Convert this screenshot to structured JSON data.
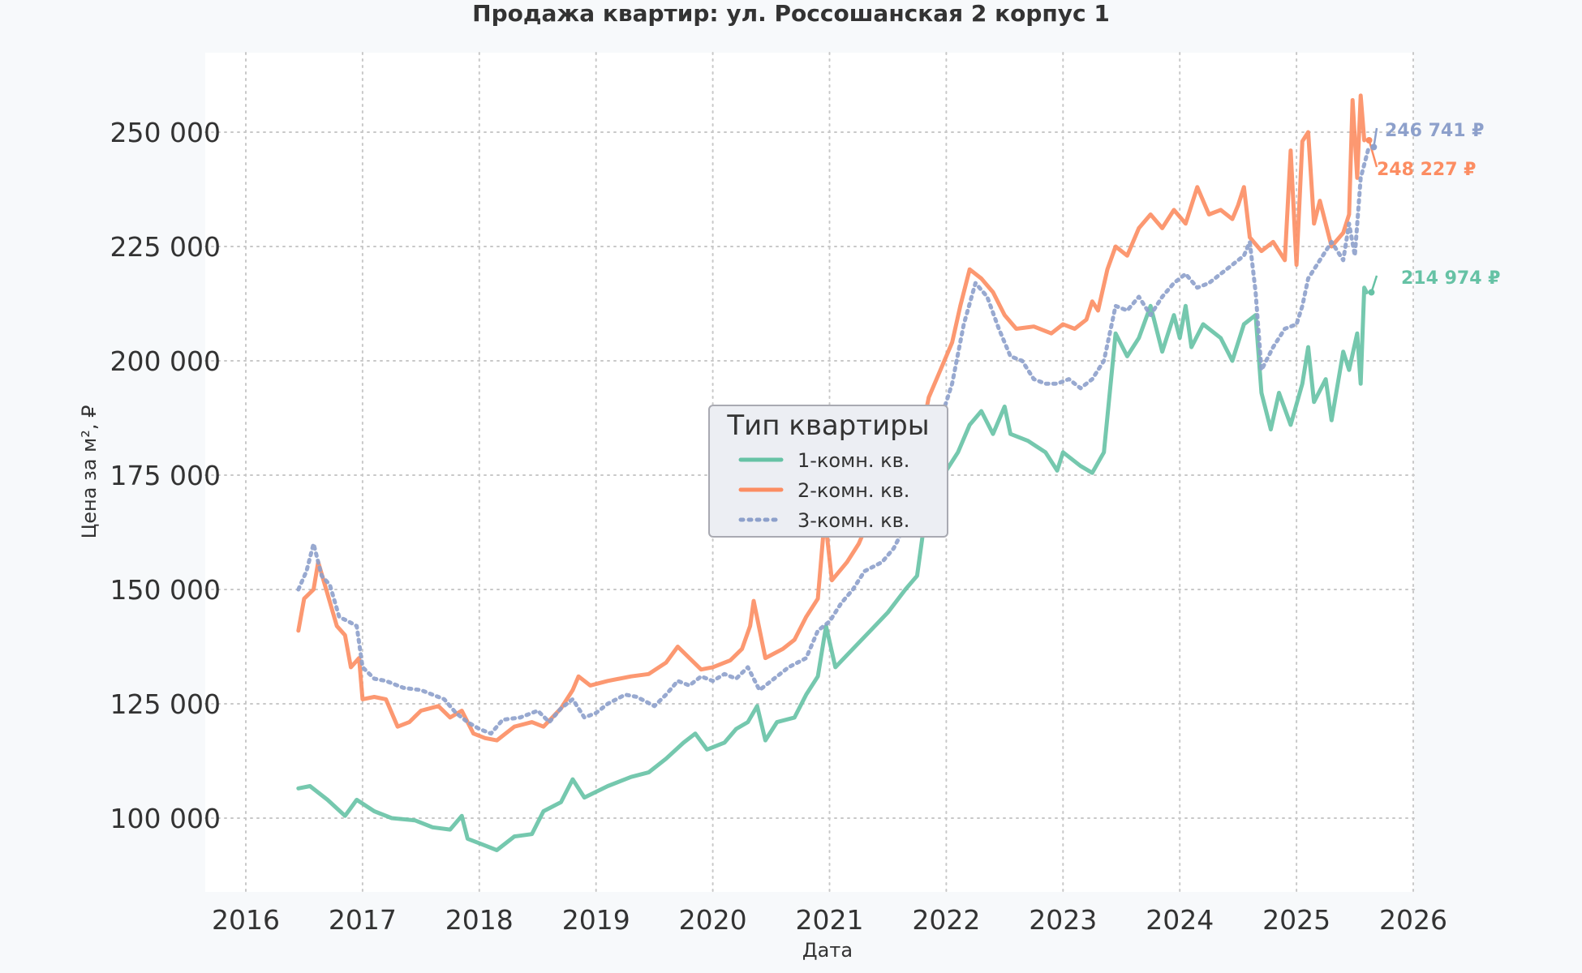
{
  "chart_data": {
    "type": "line",
    "title": "Продажа квартир: ул. Россошанская 2 корпус 1",
    "xlabel": "Дата",
    "ylabel": "Цена за м², ₽",
    "xlim": [
      2016,
      2026
    ],
    "ylim": [
      85000,
      267000
    ],
    "x_ticks": [
      "2016",
      "2017",
      "2018",
      "2019",
      "2020",
      "2021",
      "2022",
      "2023",
      "2024",
      "2025",
      "2026"
    ],
    "y_ticks": [
      {
        "value": 100000,
        "label": "100 000"
      },
      {
        "value": 125000,
        "label": "125 000"
      },
      {
        "value": 150000,
        "label": "150 000"
      },
      {
        "value": 175000,
        "label": "175 000"
      },
      {
        "value": 200000,
        "label": "200 000"
      },
      {
        "value": 225000,
        "label": "225 000"
      },
      {
        "value": 250000,
        "label": "250 000"
      }
    ],
    "grid": true,
    "legend": {
      "title": "Тип квартиры",
      "placement": "center"
    },
    "series": [
      {
        "name": "1-комн. кв.",
        "color": "#66c2a5",
        "dash": "solid",
        "end_label": "214 974 ₽",
        "points": [
          [
            2016.45,
            106500
          ],
          [
            2016.55,
            107000
          ],
          [
            2016.7,
            104000
          ],
          [
            2016.85,
            100500
          ],
          [
            2016.95,
            104000
          ],
          [
            2017.1,
            101500
          ],
          [
            2017.25,
            100000
          ],
          [
            2017.45,
            99500
          ],
          [
            2017.6,
            98000
          ],
          [
            2017.75,
            97500
          ],
          [
            2017.85,
            100500
          ],
          [
            2017.9,
            95500
          ],
          [
            2018.05,
            94000
          ],
          [
            2018.15,
            93000
          ],
          [
            2018.3,
            96000
          ],
          [
            2018.45,
            96500
          ],
          [
            2018.55,
            101500
          ],
          [
            2018.7,
            103500
          ],
          [
            2018.8,
            108500
          ],
          [
            2018.9,
            104500
          ],
          [
            2019.1,
            107000
          ],
          [
            2019.3,
            109000
          ],
          [
            2019.45,
            110000
          ],
          [
            2019.6,
            113000
          ],
          [
            2019.75,
            116500
          ],
          [
            2019.85,
            118500
          ],
          [
            2019.95,
            115000
          ],
          [
            2020.1,
            116500
          ],
          [
            2020.2,
            119500
          ],
          [
            2020.3,
            121000
          ],
          [
            2020.38,
            124500
          ],
          [
            2020.45,
            117000
          ],
          [
            2020.55,
            121000
          ],
          [
            2020.7,
            122000
          ],
          [
            2020.8,
            127000
          ],
          [
            2020.9,
            131000
          ],
          [
            2020.97,
            142000
          ],
          [
            2021.05,
            133000
          ],
          [
            2021.2,
            137000
          ],
          [
            2021.35,
            141000
          ],
          [
            2021.5,
            145000
          ],
          [
            2021.65,
            150000
          ],
          [
            2021.75,
            153000
          ],
          [
            2021.82,
            166000
          ],
          [
            2021.9,
            172000
          ],
          [
            2022.0,
            176000
          ],
          [
            2022.1,
            180000
          ],
          [
            2022.2,
            186000
          ],
          [
            2022.3,
            189000
          ],
          [
            2022.4,
            184000
          ],
          [
            2022.5,
            190000
          ],
          [
            2022.55,
            184000
          ],
          [
            2022.7,
            182500
          ],
          [
            2022.85,
            180000
          ],
          [
            2022.95,
            176000
          ],
          [
            2023.0,
            180000
          ],
          [
            2023.15,
            177000
          ],
          [
            2023.25,
            175500
          ],
          [
            2023.35,
            180000
          ],
          [
            2023.4,
            193000
          ],
          [
            2023.45,
            206000
          ],
          [
            2023.55,
            201000
          ],
          [
            2023.65,
            205000
          ],
          [
            2023.75,
            212000
          ],
          [
            2023.85,
            202000
          ],
          [
            2023.95,
            210000
          ],
          [
            2024.0,
            205000
          ],
          [
            2024.05,
            212000
          ],
          [
            2024.1,
            203000
          ],
          [
            2024.2,
            208000
          ],
          [
            2024.35,
            205000
          ],
          [
            2024.45,
            200000
          ],
          [
            2024.55,
            208000
          ],
          [
            2024.65,
            210000
          ],
          [
            2024.7,
            193000
          ],
          [
            2024.78,
            185000
          ],
          [
            2024.85,
            193000
          ],
          [
            2024.95,
            186000
          ],
          [
            2025.05,
            195000
          ],
          [
            2025.1,
            203000
          ],
          [
            2025.15,
            191000
          ],
          [
            2025.25,
            196000
          ],
          [
            2025.3,
            187000
          ],
          [
            2025.4,
            202000
          ],
          [
            2025.45,
            198000
          ],
          [
            2025.52,
            206000
          ],
          [
            2025.55,
            195000
          ],
          [
            2025.58,
            216000
          ],
          [
            2025.6,
            214974
          ]
        ]
      },
      {
        "name": "2-комн. кв.",
        "color": "#fc8d62",
        "dash": "solid",
        "end_label": "248 227 ₽",
        "points": [
          [
            2016.45,
            141000
          ],
          [
            2016.5,
            148000
          ],
          [
            2016.58,
            150000
          ],
          [
            2016.62,
            156000
          ],
          [
            2016.7,
            149000
          ],
          [
            2016.78,
            142000
          ],
          [
            2016.85,
            140000
          ],
          [
            2016.9,
            133000
          ],
          [
            2016.97,
            135000
          ],
          [
            2017.0,
            126000
          ],
          [
            2017.1,
            126500
          ],
          [
            2017.2,
            126000
          ],
          [
            2017.3,
            120000
          ],
          [
            2017.4,
            121000
          ],
          [
            2017.5,
            123500
          ],
          [
            2017.65,
            124500
          ],
          [
            2017.75,
            122000
          ],
          [
            2017.85,
            123500
          ],
          [
            2017.95,
            118500
          ],
          [
            2018.05,
            117500
          ],
          [
            2018.15,
            117000
          ],
          [
            2018.3,
            120000
          ],
          [
            2018.45,
            121000
          ],
          [
            2018.55,
            120000
          ],
          [
            2018.7,
            124000
          ],
          [
            2018.8,
            128000
          ],
          [
            2018.85,
            131000
          ],
          [
            2018.95,
            129000
          ],
          [
            2019.1,
            130000
          ],
          [
            2019.3,
            131000
          ],
          [
            2019.45,
            131500
          ],
          [
            2019.6,
            134000
          ],
          [
            2019.7,
            137500
          ],
          [
            2019.8,
            135000
          ],
          [
            2019.9,
            132500
          ],
          [
            2020.0,
            133000
          ],
          [
            2020.15,
            134500
          ],
          [
            2020.25,
            137000
          ],
          [
            2020.32,
            142000
          ],
          [
            2020.35,
            147500
          ],
          [
            2020.45,
            135000
          ],
          [
            2020.6,
            137000
          ],
          [
            2020.7,
            139000
          ],
          [
            2020.8,
            144000
          ],
          [
            2020.9,
            148000
          ],
          [
            2020.96,
            166000
          ],
          [
            2021.02,
            152000
          ],
          [
            2021.15,
            156000
          ],
          [
            2021.25,
            160000
          ],
          [
            2021.3,
            163000
          ],
          [
            2021.45,
            169000
          ],
          [
            2021.6,
            175000
          ],
          [
            2021.7,
            180000
          ],
          [
            2021.78,
            183000
          ],
          [
            2021.85,
            192000
          ],
          [
            2021.95,
            198000
          ],
          [
            2022.05,
            204000
          ],
          [
            2022.12,
            212000
          ],
          [
            2022.2,
            220000
          ],
          [
            2022.3,
            218000
          ],
          [
            2022.4,
            215000
          ],
          [
            2022.5,
            210000
          ],
          [
            2022.6,
            207000
          ],
          [
            2022.75,
            207500
          ],
          [
            2022.9,
            206000
          ],
          [
            2023.0,
            208000
          ],
          [
            2023.1,
            207000
          ],
          [
            2023.2,
            209000
          ],
          [
            2023.25,
            213000
          ],
          [
            2023.3,
            211000
          ],
          [
            2023.38,
            220000
          ],
          [
            2023.45,
            225000
          ],
          [
            2023.55,
            223000
          ],
          [
            2023.65,
            229000
          ],
          [
            2023.75,
            232000
          ],
          [
            2023.85,
            229000
          ],
          [
            2023.95,
            233000
          ],
          [
            2024.05,
            230000
          ],
          [
            2024.15,
            238000
          ],
          [
            2024.25,
            232000
          ],
          [
            2024.35,
            233000
          ],
          [
            2024.45,
            231000
          ],
          [
            2024.5,
            234000
          ],
          [
            2024.55,
            238000
          ],
          [
            2024.6,
            227000
          ],
          [
            2024.7,
            224000
          ],
          [
            2024.8,
            226000
          ],
          [
            2024.9,
            222000
          ],
          [
            2024.95,
            246000
          ],
          [
            2025.0,
            221000
          ],
          [
            2025.05,
            248000
          ],
          [
            2025.1,
            250000
          ],
          [
            2025.15,
            230000
          ],
          [
            2025.2,
            235000
          ],
          [
            2025.3,
            225000
          ],
          [
            2025.4,
            228000
          ],
          [
            2025.45,
            232000
          ],
          [
            2025.48,
            257000
          ],
          [
            2025.52,
            240000
          ],
          [
            2025.55,
            258000
          ],
          [
            2025.58,
            248227
          ]
        ]
      },
      {
        "name": "3-комн. кв.",
        "color": "#8da0cb",
        "dash": "dotted",
        "end_label": "246 741 ₽",
        "points": [
          [
            2016.45,
            150000
          ],
          [
            2016.52,
            154000
          ],
          [
            2016.58,
            160000
          ],
          [
            2016.65,
            153000
          ],
          [
            2016.72,
            151000
          ],
          [
            2016.8,
            144000
          ],
          [
            2016.88,
            143000
          ],
          [
            2016.95,
            142000
          ],
          [
            2017.0,
            133000
          ],
          [
            2017.1,
            130500
          ],
          [
            2017.2,
            130000
          ],
          [
            2017.35,
            128500
          ],
          [
            2017.5,
            128000
          ],
          [
            2017.6,
            127000
          ],
          [
            2017.7,
            126000
          ],
          [
            2017.8,
            123000
          ],
          [
            2017.9,
            121000
          ],
          [
            2018.0,
            119500
          ],
          [
            2018.1,
            118500
          ],
          [
            2018.2,
            121500
          ],
          [
            2018.35,
            122000
          ],
          [
            2018.5,
            123500
          ],
          [
            2018.6,
            121000
          ],
          [
            2018.7,
            124000
          ],
          [
            2018.8,
            126000
          ],
          [
            2018.9,
            122000
          ],
          [
            2019.0,
            123000
          ],
          [
            2019.1,
            125000
          ],
          [
            2019.25,
            127000
          ],
          [
            2019.35,
            126500
          ],
          [
            2019.5,
            124500
          ],
          [
            2019.6,
            127000
          ],
          [
            2019.7,
            130000
          ],
          [
            2019.8,
            129000
          ],
          [
            2019.9,
            131000
          ],
          [
            2020.0,
            130000
          ],
          [
            2020.1,
            131500
          ],
          [
            2020.2,
            130500
          ],
          [
            2020.3,
            133000
          ],
          [
            2020.4,
            128000
          ],
          [
            2020.5,
            130000
          ],
          [
            2020.65,
            133000
          ],
          [
            2020.8,
            135000
          ],
          [
            2020.9,
            141000
          ],
          [
            2021.0,
            143000
          ],
          [
            2021.1,
            147000
          ],
          [
            2021.2,
            150000
          ],
          [
            2021.3,
            154000
          ],
          [
            2021.45,
            156000
          ],
          [
            2021.55,
            159000
          ],
          [
            2021.65,
            164000
          ],
          [
            2021.75,
            170000
          ],
          [
            2021.85,
            180000
          ],
          [
            2021.95,
            187000
          ],
          [
            2022.05,
            195000
          ],
          [
            2022.15,
            208000
          ],
          [
            2022.25,
            217000
          ],
          [
            2022.35,
            214000
          ],
          [
            2022.45,
            207000
          ],
          [
            2022.55,
            201000
          ],
          [
            2022.65,
            200000
          ],
          [
            2022.75,
            196000
          ],
          [
            2022.85,
            195000
          ],
          [
            2022.95,
            195000
          ],
          [
            2023.05,
            196000
          ],
          [
            2023.15,
            194000
          ],
          [
            2023.25,
            196000
          ],
          [
            2023.35,
            200000
          ],
          [
            2023.45,
            212000
          ],
          [
            2023.55,
            211000
          ],
          [
            2023.65,
            214000
          ],
          [
            2023.75,
            210000
          ],
          [
            2023.85,
            214000
          ],
          [
            2023.95,
            217000
          ],
          [
            2024.05,
            219000
          ],
          [
            2024.15,
            216000
          ],
          [
            2024.25,
            217000
          ],
          [
            2024.35,
            219000
          ],
          [
            2024.45,
            221000
          ],
          [
            2024.55,
            223000
          ],
          [
            2024.6,
            226000
          ],
          [
            2024.65,
            215000
          ],
          [
            2024.7,
            198000
          ],
          [
            2024.8,
            203000
          ],
          [
            2024.9,
            207000
          ],
          [
            2025.0,
            208000
          ],
          [
            2025.05,
            212000
          ],
          [
            2025.1,
            218000
          ],
          [
            2025.2,
            222000
          ],
          [
            2025.3,
            226000
          ],
          [
            2025.4,
            222000
          ],
          [
            2025.45,
            230000
          ],
          [
            2025.5,
            223000
          ],
          [
            2025.55,
            240000
          ],
          [
            2025.62,
            246741
          ]
        ]
      }
    ]
  }
}
